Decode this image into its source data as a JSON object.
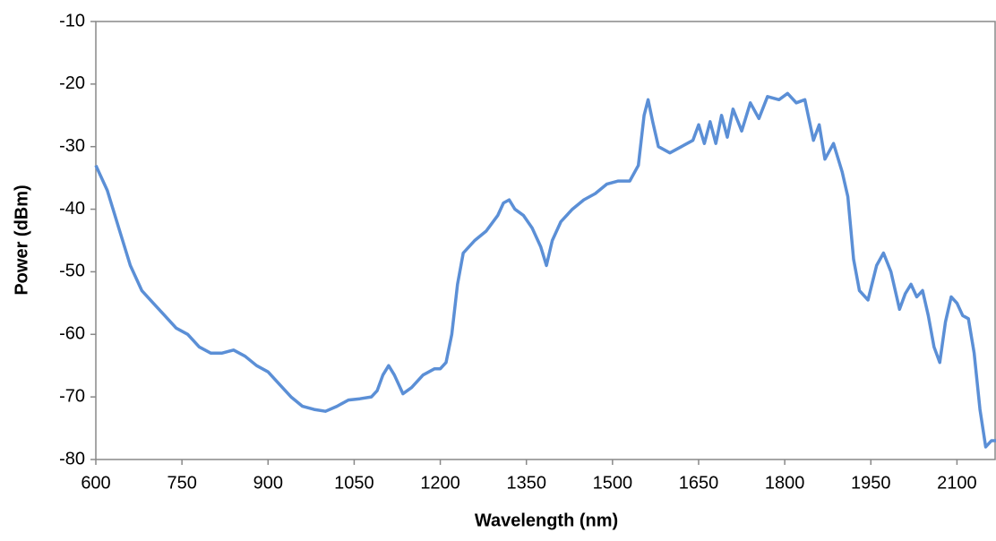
{
  "chart_data": {
    "type": "line",
    "x_label": "Wavelength (nm)",
    "y_label": "Power (dBm)",
    "xlim": [
      600,
      2168
    ],
    "ylim": [
      -80,
      -10
    ],
    "xticks": [
      600,
      750,
      900,
      1050,
      1200,
      1350,
      1500,
      1650,
      1800,
      1950,
      2100
    ],
    "yticks": [
      -80,
      -70,
      -60,
      -50,
      -40,
      -30,
      -20,
      -10
    ],
    "series": [
      {
        "color": "#5b8fd6",
        "x": [
          600,
          620,
          640,
          660,
          680,
          700,
          720,
          740,
          760,
          780,
          800,
          820,
          840,
          860,
          880,
          900,
          920,
          940,
          960,
          980,
          1000,
          1020,
          1040,
          1060,
          1080,
          1090,
          1100,
          1110,
          1120,
          1135,
          1150,
          1170,
          1190,
          1200,
          1210,
          1220,
          1230,
          1240,
          1260,
          1280,
          1300,
          1310,
          1320,
          1330,
          1345,
          1360,
          1375,
          1385,
          1395,
          1410,
          1430,
          1450,
          1470,
          1490,
          1510,
          1530,
          1545,
          1555,
          1562,
          1570,
          1580,
          1600,
          1620,
          1640,
          1650,
          1660,
          1670,
          1680,
          1690,
          1700,
          1710,
          1725,
          1740,
          1755,
          1770,
          1790,
          1805,
          1820,
          1835,
          1850,
          1860,
          1870,
          1885,
          1900,
          1910,
          1920,
          1930,
          1945,
          1960,
          1972,
          1985,
          2000,
          2010,
          2020,
          2030,
          2040,
          2050,
          2060,
          2070,
          2080,
          2090,
          2100,
          2110,
          2120,
          2130,
          2140,
          2150,
          2160,
          2168
        ],
        "values": [
          -33,
          -37,
          -43,
          -49,
          -53,
          -55,
          -57,
          -59,
          -60,
          -62,
          -63,
          -63,
          -62.5,
          -63.5,
          -65,
          -66,
          -68,
          -70,
          -71.5,
          -72,
          -72.3,
          -71.5,
          -70.5,
          -70.3,
          -70,
          -69,
          -66.5,
          -65,
          -66.5,
          -69.5,
          -68.5,
          -66.5,
          -65.5,
          -65.5,
          -64.5,
          -60,
          -52,
          -47,
          -45,
          -43.5,
          -41,
          -39,
          -38.5,
          -40,
          -41,
          -43,
          -46,
          -49,
          -45,
          -42,
          -40,
          -38.5,
          -37.5,
          -36,
          -35.5,
          -35.5,
          -33,
          -25,
          -22.5,
          -26,
          -30,
          -31,
          -30,
          -29,
          -26.5,
          -29.5,
          -26,
          -29.5,
          -25,
          -28.5,
          -24,
          -27.5,
          -23,
          -25.5,
          -22,
          -22.5,
          -21.5,
          -23,
          -22.5,
          -29,
          -26.5,
          -32,
          -29.5,
          -34,
          -38,
          -48,
          -53,
          -54.5,
          -49,
          -47,
          -50,
          -56,
          -53.5,
          -52,
          -54,
          -53,
          -57,
          -62,
          -64.5,
          -58,
          -54,
          -55,
          -57,
          -57.5,
          -63,
          -72,
          -78,
          -77,
          -77
        ]
      }
    ]
  }
}
